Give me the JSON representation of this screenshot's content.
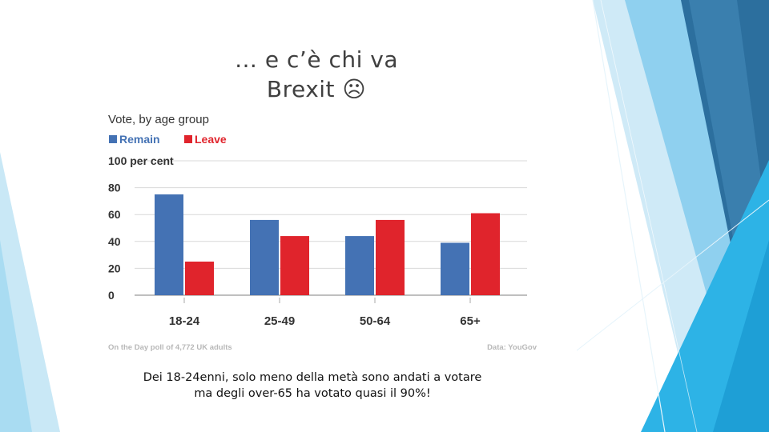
{
  "slide": {
    "title_line1": "… e c’è chi va",
    "title_line2": "Brexit ☹",
    "caption_line1": "Dei 18-24enni,  solo meno della metà sono andati a votare",
    "caption_line2": "ma degli over-65 ha votato quasi il 90%!"
  },
  "chart_data": {
    "type": "bar",
    "title": "Vote, by age group",
    "categories": [
      "18-24",
      "25-49",
      "50-64",
      "65+"
    ],
    "series": [
      {
        "name": "Remain",
        "color": "#4472b4",
        "values": [
          75,
          56,
          44,
          39
        ]
      },
      {
        "name": "Leave",
        "color": "#e0242c",
        "values": [
          25,
          44,
          56,
          61
        ]
      }
    ],
    "ylim": [
      0,
      100
    ],
    "yticks": [
      0,
      20,
      40,
      60,
      80,
      100
    ],
    "ytick_labels": [
      "0",
      "20",
      "40",
      "60",
      "80",
      "100 per cent"
    ],
    "grid": true,
    "legend_position": "top-left",
    "footnote_left": "On the Day poll of 4,772 UK adults",
    "footnote_right": "Data: YouGov"
  },
  "colors": {
    "bg_light": "#cfeaf7",
    "bg_mid": "#8fd0ef",
    "bg_bright": "#2db3e6",
    "bg_dark": "#2c6f9e"
  }
}
